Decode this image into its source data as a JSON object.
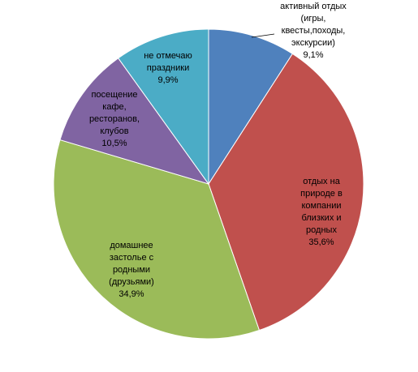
{
  "chart_data": {
    "type": "pie",
    "title": "",
    "slices": [
      {
        "label_lines": [
          "активный отдых",
          "(игры,",
          "квесты,походы,",
          "экскурсии)"
        ],
        "value_text": "9,1%",
        "value": 9.1,
        "color": "#4F81BD"
      },
      {
        "label_lines": [
          "отдых на",
          "природе в",
          "компании",
          "близких и",
          "родных"
        ],
        "value_text": "35,6%",
        "value": 35.6,
        "color": "#C0504D"
      },
      {
        "label_lines": [
          "домашнее",
          "застолье с",
          "родными",
          "(друзьями)"
        ],
        "value_text": "34,9%",
        "value": 34.9,
        "color": "#9BBB59"
      },
      {
        "label_lines": [
          "посещение",
          "кафе,",
          "ресторанов,",
          "клубов"
        ],
        "value_text": "10,5%",
        "value": 10.5,
        "color": "#8064A2"
      },
      {
        "label_lines": [
          "не отмечаю",
          "праздники"
        ],
        "value_text": "9,9%",
        "value": 9.9,
        "color": "#4BACC6"
      }
    ]
  }
}
